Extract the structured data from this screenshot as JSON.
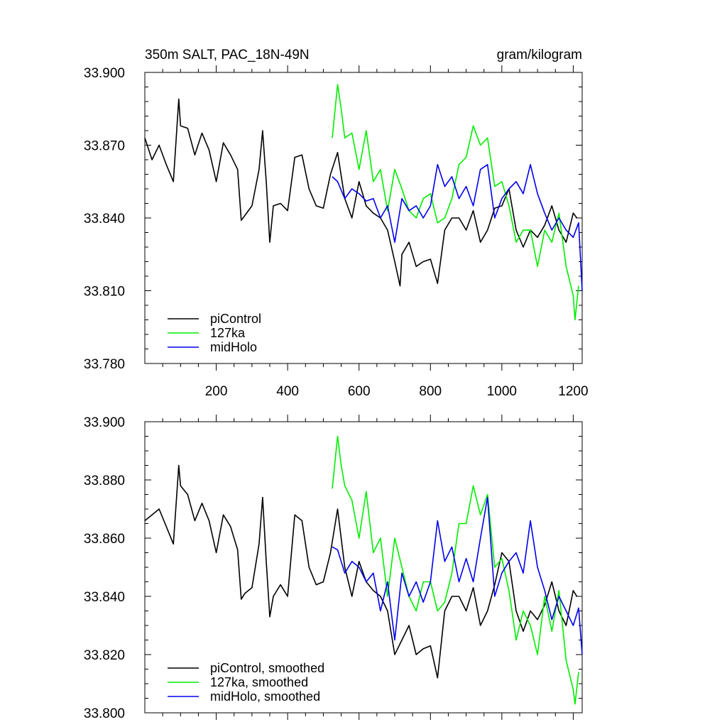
{
  "chart_data": [
    {
      "type": "line",
      "title": "350m SALT, PAC_18N-49N",
      "units": "gram/kilogram",
      "xlabel": "",
      "ylabel": "",
      "xlim": [
        0,
        1225
      ],
      "ylim": [
        33.78,
        33.9
      ],
      "xticks": [
        200,
        400,
        600,
        800,
        1000,
        1200
      ],
      "xtick_labels": [
        "200",
        "400",
        "600",
        "800",
        "1000",
        "1200"
      ],
      "yticks": [
        33.78,
        33.81,
        33.84,
        33.87,
        33.9
      ],
      "ytick_labels": [
        "33.780",
        "33.810",
        "33.840",
        "33.870",
        "33.900"
      ],
      "legend_position": "bottom-left",
      "grid": false,
      "series": [
        {
          "name": "piControl",
          "color": "#000000",
          "x": [
            0,
            20,
            40,
            60,
            80,
            95,
            100,
            120,
            140,
            160,
            180,
            200,
            220,
            240,
            260,
            270,
            280,
            300,
            320,
            330,
            340,
            350,
            360,
            380,
            400,
            420,
            440,
            460,
            480,
            500,
            520,
            540,
            560,
            580,
            600,
            620,
            640,
            660,
            680,
            700,
            715,
            720,
            740,
            760,
            780,
            800,
            820,
            840,
            860,
            880,
            900,
            920,
            940,
            960,
            980,
            1000,
            1020,
            1040,
            1060,
            1080,
            1100,
            1120,
            1140,
            1160,
            1180,
            1200,
            1210
          ],
          "values": [
            33.873,
            33.864,
            33.87,
            33.862,
            33.855,
            33.889,
            33.878,
            33.877,
            33.866,
            33.875,
            33.868,
            33.855,
            33.871,
            33.866,
            33.86,
            33.839,
            33.841,
            33.845,
            33.86,
            33.876,
            33.855,
            33.83,
            33.845,
            33.846,
            33.843,
            33.865,
            33.866,
            33.852,
            33.845,
            33.844,
            33.858,
            33.867,
            33.848,
            33.84,
            33.855,
            33.845,
            33.842,
            33.84,
            33.835,
            33.822,
            33.812,
            33.825,
            33.83,
            33.82,
            33.822,
            33.823,
            33.813,
            33.835,
            33.84,
            33.84,
            33.835,
            33.843,
            33.83,
            33.835,
            33.844,
            33.845,
            33.852,
            33.835,
            33.828,
            33.835,
            33.832,
            33.837,
            33.845,
            33.835,
            33.83,
            33.842,
            33.84
          ]
        },
        {
          "name": "127ka",
          "color": "#00ee00",
          "x": [
            525,
            540,
            550,
            560,
            580,
            600,
            620,
            640,
            660,
            680,
            700,
            720,
            740,
            760,
            780,
            800,
            820,
            840,
            860,
            880,
            900,
            920,
            940,
            960,
            980,
            1000,
            1020,
            1040,
            1060,
            1080,
            1100,
            1120,
            1140,
            1160,
            1180,
            1200,
            1205,
            1215
          ],
          "values": [
            33.873,
            33.895,
            33.885,
            33.873,
            33.875,
            33.86,
            33.876,
            33.855,
            33.86,
            33.843,
            33.86,
            33.852,
            33.843,
            33.84,
            33.848,
            33.85,
            33.838,
            33.84,
            33.848,
            33.862,
            33.865,
            33.878,
            33.87,
            33.873,
            33.853,
            33.855,
            33.845,
            33.83,
            33.835,
            33.835,
            33.82,
            33.835,
            33.83,
            33.842,
            33.82,
            33.808,
            33.798,
            33.812
          ]
        },
        {
          "name": "midHolo",
          "color": "#0000ee",
          "x": [
            525,
            540,
            560,
            580,
            600,
            620,
            640,
            660,
            680,
            700,
            720,
            740,
            760,
            780,
            800,
            820,
            840,
            860,
            880,
            900,
            920,
            940,
            960,
            980,
            1000,
            1020,
            1040,
            1060,
            1080,
            1100,
            1120,
            1140,
            1160,
            1180,
            1200,
            1215,
            1225
          ],
          "values": [
            33.857,
            33.855,
            33.848,
            33.852,
            33.85,
            33.847,
            33.848,
            33.84,
            33.845,
            33.83,
            33.848,
            33.843,
            33.845,
            33.84,
            33.845,
            33.862,
            33.853,
            33.857,
            33.848,
            33.853,
            33.845,
            33.86,
            33.862,
            33.84,
            33.848,
            33.852,
            33.855,
            33.85,
            33.862,
            33.85,
            33.842,
            33.835,
            33.84,
            33.835,
            33.832,
            33.838,
            33.81
          ]
        }
      ]
    },
    {
      "type": "line",
      "title": "",
      "xlabel": "",
      "ylabel": "",
      "xlim": [
        0,
        1225
      ],
      "ylim": [
        33.8,
        33.9
      ],
      "xticks": [
        200,
        400,
        600,
        800,
        1000,
        1200
      ],
      "xtick_labels": [],
      "yticks": [
        33.8,
        33.82,
        33.84,
        33.86,
        33.88,
        33.9
      ],
      "ytick_labels": [
        "33.800",
        "33.820",
        "33.840",
        "33.860",
        "33.880",
        "33.900"
      ],
      "legend_position": "bottom-left",
      "grid": false,
      "series": [
        {
          "name": "piControl, smoothed",
          "color": "#000000",
          "x": [
            0,
            20,
            40,
            60,
            80,
            95,
            100,
            120,
            140,
            160,
            180,
            200,
            220,
            240,
            260,
            270,
            280,
            300,
            320,
            330,
            340,
            350,
            360,
            380,
            400,
            420,
            440,
            460,
            480,
            500,
            520,
            540,
            560,
            580,
            600,
            620,
            640,
            660,
            680,
            700,
            720,
            740,
            760,
            780,
            800,
            820,
            840,
            860,
            880,
            900,
            920,
            940,
            960,
            980,
            1000,
            1020,
            1040,
            1060,
            1080,
            1100,
            1120,
            1140,
            1160,
            1180,
            1200,
            1210
          ],
          "values": [
            33.866,
            33.868,
            33.87,
            33.864,
            33.858,
            33.885,
            33.878,
            33.875,
            33.866,
            33.872,
            33.866,
            33.855,
            33.868,
            33.864,
            33.856,
            33.839,
            33.841,
            33.843,
            33.858,
            33.874,
            33.852,
            33.833,
            33.84,
            33.844,
            33.84,
            33.868,
            33.866,
            33.85,
            33.844,
            33.845,
            33.855,
            33.87,
            33.85,
            33.84,
            33.852,
            33.845,
            33.842,
            33.84,
            33.835,
            33.82,
            33.825,
            33.83,
            33.82,
            33.822,
            33.823,
            33.812,
            33.835,
            33.84,
            33.84,
            33.835,
            33.843,
            33.83,
            33.835,
            33.844,
            33.855,
            33.852,
            33.835,
            33.828,
            33.835,
            33.832,
            33.837,
            33.845,
            33.835,
            33.83,
            33.842,
            33.84
          ]
        },
        {
          "name": "127ka, smoothed",
          "color": "#00ee00",
          "x": [
            525,
            540,
            550,
            560,
            580,
            600,
            620,
            640,
            660,
            680,
            700,
            720,
            740,
            760,
            780,
            800,
            820,
            840,
            860,
            880,
            900,
            920,
            940,
            960,
            980,
            1000,
            1020,
            1040,
            1060,
            1080,
            1100,
            1120,
            1140,
            1160,
            1180,
            1200,
            1205,
            1215
          ],
          "values": [
            33.877,
            33.895,
            33.885,
            33.878,
            33.873,
            33.86,
            33.876,
            33.855,
            33.86,
            33.84,
            33.86,
            33.85,
            33.84,
            33.835,
            33.845,
            33.845,
            33.835,
            33.838,
            33.848,
            33.865,
            33.865,
            33.878,
            33.868,
            33.875,
            33.85,
            33.853,
            33.842,
            33.825,
            33.835,
            33.83,
            33.82,
            33.84,
            33.828,
            33.842,
            33.818,
            33.808,
            33.803,
            33.814
          ]
        },
        {
          "name": "midHolo, smoothed",
          "color": "#0000ee",
          "x": [
            525,
            540,
            560,
            580,
            600,
            620,
            640,
            660,
            680,
            700,
            720,
            740,
            760,
            780,
            800,
            820,
            840,
            860,
            880,
            900,
            920,
            940,
            960,
            980,
            1000,
            1020,
            1040,
            1060,
            1080,
            1100,
            1120,
            1140,
            1160,
            1180,
            1200,
            1215,
            1225
          ],
          "values": [
            33.857,
            33.856,
            33.848,
            33.852,
            33.85,
            33.845,
            33.848,
            33.835,
            33.845,
            33.825,
            33.848,
            33.84,
            33.845,
            33.838,
            33.845,
            33.866,
            33.852,
            33.857,
            33.845,
            33.853,
            33.845,
            33.86,
            33.874,
            33.84,
            33.848,
            33.852,
            33.855,
            33.848,
            33.866,
            33.85,
            33.842,
            33.832,
            33.84,
            33.835,
            33.83,
            33.836,
            33.82
          ]
        }
      ]
    }
  ]
}
